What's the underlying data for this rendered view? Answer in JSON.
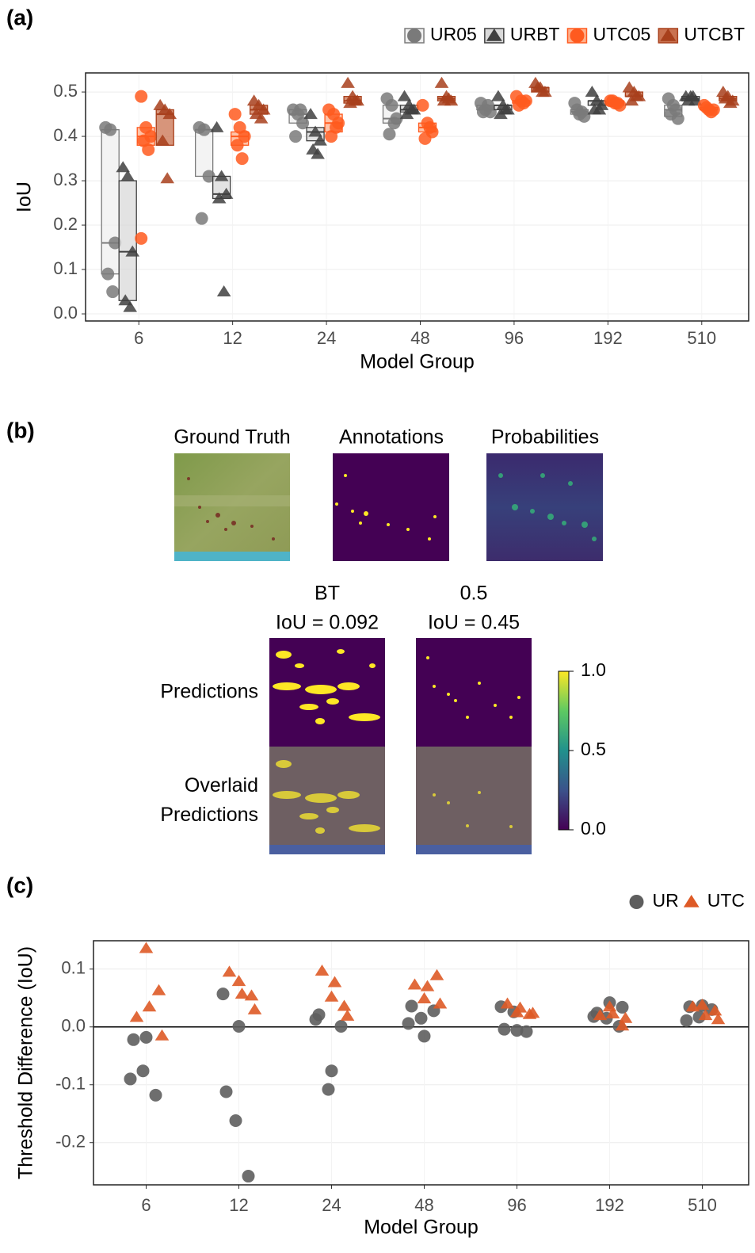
{
  "chart_data": [
    {
      "type": "box",
      "panel_label": "(a)",
      "ylabel": "IoU",
      "xlabel": "Model Group",
      "categories": [
        "6",
        "12",
        "24",
        "48",
        "96",
        "192",
        "510"
      ],
      "ylim": [
        -0.016,
        0.543
      ],
      "yticks": [
        {
          "value": 0,
          "label": "0.0"
        },
        0.1,
        0.2,
        0.3,
        0.4,
        0.5
      ],
      "grid": true,
      "legend": "top-right",
      "series": [
        {
          "name": "UR05",
          "color": "#7a7a7a",
          "box_fill": "#efefef",
          "marker": "circle",
          "values": [
            [
              0.42,
              0.415,
              0.16,
              0.09,
              0.05
            ],
            [
              0.42,
              0.415,
              0.31,
              0.215
            ],
            [
              0.46,
              0.45,
              0.43,
              0.4,
              0.46
            ],
            [
              0.485,
              0.47,
              0.44,
              0.405,
              0.43
            ],
            [
              0.475,
              0.46,
              0.455,
              0.455,
              0.47
            ],
            [
              0.475,
              0.45,
              0.445,
              0.46,
              0.455
            ],
            [
              0.485,
              0.47,
              0.44,
              0.45,
              0.46
            ]
          ],
          "boxes": [
            [
              0.09,
              0.16,
              0.415
            ],
            [
              0.31,
              0.415,
              0.415
            ],
            [
              0.43,
              0.45,
              0.46
            ],
            [
              0.43,
              0.44,
              0.47
            ],
            [
              0.46,
              0.46,
              0.47
            ],
            [
              0.45,
              0.455,
              0.46
            ],
            [
              0.445,
              0.46,
              0.47
            ]
          ]
        },
        {
          "name": "URBT",
          "color": "#3f3f3f",
          "box_fill": "#d9d9d9",
          "marker": "triangle",
          "values": [
            [
              0.33,
              0.31,
              0.14,
              0.03,
              0.015
            ],
            [
              0.42,
              0.31,
              0.27,
              0.26,
              0.05
            ],
            [
              0.45,
              0.41,
              0.39,
              0.37,
              0.36
            ],
            [
              0.49,
              0.47,
              0.46,
              0.45,
              0.46
            ],
            [
              0.49,
              0.47,
              0.46,
              0.45,
              0.46
            ],
            [
              0.5,
              0.48,
              0.47,
              0.46,
              0.46
            ],
            [
              0.49,
              0.49,
              0.48,
              0.48,
              0.49
            ]
          ],
          "boxes": [
            [
              0.03,
              0.14,
              0.3
            ],
            [
              0.26,
              0.27,
              0.31
            ],
            [
              0.39,
              0.41,
              0.42
            ],
            [
              0.455,
              0.46,
              0.47
            ],
            [
              0.46,
              0.47,
              0.47
            ],
            [
              0.47,
              0.48,
              0.48
            ],
            [
              0.48,
              0.485,
              0.49
            ]
          ]
        },
        {
          "name": "UTC05",
          "color": "#ff5a1f",
          "box_fill": "#ffb08c",
          "marker": "circle",
          "values": [
            [
              0.49,
              0.42,
              0.4,
              0.39,
              0.37,
              0.17
            ],
            [
              0.45,
              0.42,
              0.4,
              0.38,
              0.35
            ],
            [
              0.46,
              0.45,
              0.43,
              0.4,
              0.42
            ],
            [
              0.47,
              0.43,
              0.41,
              0.395,
              0.42
            ],
            [
              0.49,
              0.48,
              0.48,
              0.47,
              0.475
            ],
            [
              0.48,
              0.475,
              0.47,
              0.48,
              0.475
            ],
            [
              0.47,
              0.46,
              0.46,
              0.465,
              0.455
            ]
          ],
          "boxes": [
            [
              0.38,
              0.4,
              0.42
            ],
            [
              0.38,
              0.4,
              0.41
            ],
            [
              0.41,
              0.43,
              0.45
            ],
            [
              0.41,
              0.42,
              0.43
            ],
            [
              0.475,
              0.48,
              0.48
            ],
            [
              0.47,
              0.475,
              0.48
            ],
            [
              0.46,
              0.46,
              0.465
            ]
          ]
        },
        {
          "name": "UTCBT",
          "color": "#a8401c",
          "box_fill": "#c9714f",
          "marker": "triangle",
          "values": [
            [
              0.47,
              0.46,
              0.45,
              0.39,
              0.305
            ],
            [
              0.48,
              0.47,
              0.46,
              0.45,
              0.44
            ],
            [
              0.52,
              0.49,
              0.48,
              0.475,
              0.48
            ],
            [
              0.52,
              0.49,
              0.48,
              0.48,
              0.485
            ],
            [
              0.52,
              0.51,
              0.5,
              0.51,
              0.5
            ],
            [
              0.51,
              0.5,
              0.49,
              0.48,
              0.49
            ],
            [
              0.5,
              0.49,
              0.48,
              0.485,
              0.475
            ]
          ],
          "boxes": [
            [
              0.38,
              0.45,
              0.46
            ],
            [
              0.45,
              0.46,
              0.47
            ],
            [
              0.475,
              0.48,
              0.49
            ],
            [
              0.48,
              0.485,
              0.49
            ],
            [
              0.5,
              0.51,
              0.51
            ],
            [
              0.49,
              0.49,
              0.5
            ],
            [
              0.48,
              0.485,
              0.49
            ]
          ]
        }
      ]
    },
    {
      "type": "image_grid",
      "panel_label": "(b)",
      "image_titles": [
        "Ground Truth",
        "Annotations",
        "Probabilities"
      ],
      "column_titles": [
        [
          "BT",
          "IoU = 0.092"
        ],
        [
          "0.5",
          "IoU = 0.45"
        ]
      ],
      "row_labels": [
        [
          "Predictions"
        ],
        [
          "Overlaid",
          "Predictions"
        ]
      ],
      "colorbar_lim": [
        0,
        1
      ],
      "colorbar_ticks": [
        {
          "value": 1,
          "label": "1.0"
        },
        0.5,
        {
          "value": 0,
          "label": "0.0"
        }
      ]
    },
    {
      "type": "scatter",
      "panel_label": "(c)",
      "ylabel": "Threshold Difference (IoU)",
      "xlabel": "Model Group",
      "categories": [
        "6",
        "12",
        "24",
        "48",
        "96",
        "192",
        "510"
      ],
      "ylim": [
        -0.273,
        0.149
      ],
      "yticks": [
        0.1,
        {
          "value": 0,
          "label": "0.0"
        },
        -0.1,
        -0.2
      ],
      "grid": true,
      "legend": "top-right",
      "zero_line": true,
      "series": [
        {
          "name": "UR",
          "color": "#5e5e5e",
          "marker": "circle",
          "values": [
            [
              -0.09,
              -0.076,
              -0.118,
              -0.022,
              -0.018
            ],
            [
              0.057,
              -0.162,
              -0.258,
              -0.112,
              0.001
            ],
            [
              0.013,
              -0.108,
              0.001,
              0.021,
              -0.076
            ],
            [
              0.006,
              0.015,
              0.028,
              0.036,
              -0.016
            ],
            [
              0.035,
              0.026,
              -0.008,
              -0.004,
              -0.006
            ],
            [
              0.018,
              0.015,
              0.001,
              0.024,
              0.042,
              0.034
            ],
            [
              0.011,
              0.017,
              0.03,
              0.035,
              0.037
            ]
          ]
        },
        {
          "name": "UTC",
          "color": "#de5a26",
          "marker": "triangle",
          "values": [
            [
              0.136,
              0.063,
              0.017,
              0.035,
              -0.015
            ],
            [
              0.079,
              0.054,
              0.095,
              0.057,
              0.03
            ],
            [
              0.052,
              0.036,
              0.097,
              0.077,
              0.019
            ],
            [
              0.049,
              0.089,
              0.073,
              0.07,
              0.04
            ],
            [
              0.025,
              0.022,
              0.04,
              0.033,
              0.024
            ],
            [
              0.035,
              0.002,
              0.02,
              0.023,
              0.015
            ],
            [
              0.038,
              0.028,
              0.035,
              0.02,
              0.013
            ]
          ]
        }
      ]
    }
  ]
}
